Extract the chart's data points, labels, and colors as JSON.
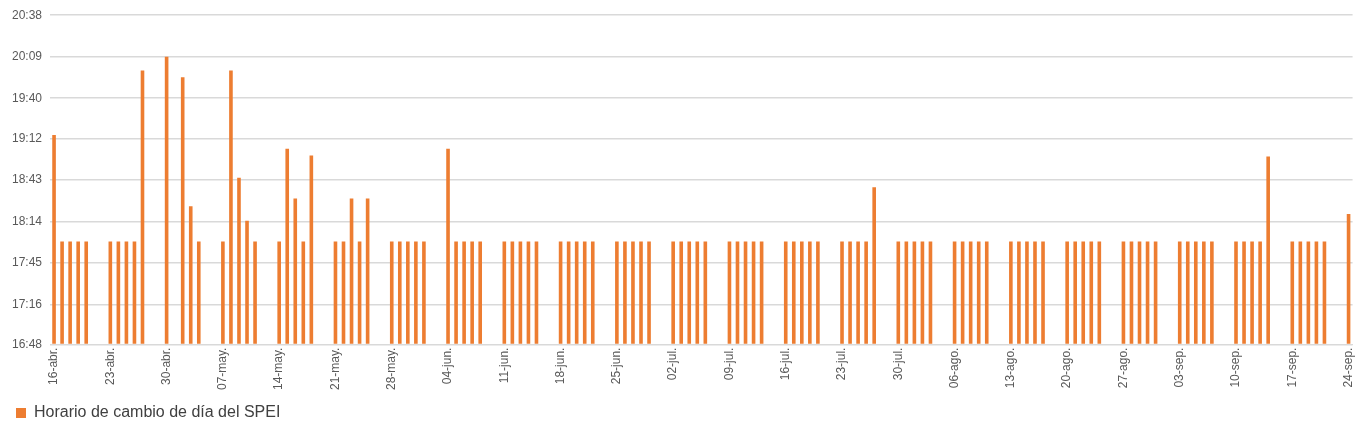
{
  "chart_data": {
    "type": "bar",
    "categories": [
      "16-abr.",
      null,
      null,
      null,
      null,
      null,
      null,
      "23-abr.",
      null,
      null,
      null,
      null,
      null,
      null,
      "30-abr.",
      null,
      null,
      null,
      null,
      null,
      null,
      "07-may.",
      null,
      null,
      null,
      null,
      null,
      null,
      "14-may.",
      null,
      null,
      null,
      null,
      null,
      null,
      "21-may.",
      null,
      null,
      null,
      null,
      null,
      null,
      "28-may.",
      null,
      null,
      null,
      null,
      null,
      null,
      "04-jun.",
      null,
      null,
      null,
      null,
      null,
      null,
      "11-jun.",
      null,
      null,
      null,
      null,
      null,
      null,
      "18-jun.",
      null,
      null,
      null,
      null,
      null,
      null,
      "25-jun.",
      null,
      null,
      null,
      null,
      null,
      null,
      "02-jul.",
      null,
      null,
      null,
      null,
      null,
      null,
      "09-jul.",
      null,
      null,
      null,
      null,
      null,
      null,
      "16-jul.",
      null,
      null,
      null,
      null,
      null,
      null,
      "23-jul.",
      null,
      null,
      null,
      null,
      null,
      null,
      "30-jul.",
      null,
      null,
      null,
      null,
      null,
      null,
      "06-ago.",
      null,
      null,
      null,
      null,
      null,
      null,
      "13-ago.",
      null,
      null,
      null,
      null,
      null,
      null,
      "20-ago.",
      null,
      null,
      null,
      null,
      null,
      null,
      "27-ago.",
      null,
      null,
      null,
      null,
      null,
      null,
      "03-sep.",
      null,
      null,
      null,
      null,
      null,
      null,
      "10-sep.",
      null,
      null,
      null,
      null,
      null,
      null,
      "17-sep.",
      null,
      null,
      null,
      null,
      null,
      null,
      "24-sep."
    ],
    "series": [
      {
        "name": "Horario de cambio de día del SPEI",
        "color": "#ed7d31",
        "values": [
          19.24,
          18,
          18,
          18,
          18,
          null,
          null,
          18,
          18,
          18,
          18,
          19.99,
          null,
          null,
          20.15,
          null,
          19.91,
          18.41,
          18,
          null,
          null,
          18,
          19.99,
          18.74,
          18.24,
          18,
          null,
          null,
          18,
          19.08,
          18.5,
          18,
          19.0,
          null,
          null,
          18,
          18,
          18.5,
          18,
          18.5,
          null,
          null,
          18,
          18,
          18,
          18,
          18,
          null,
          null,
          19.08,
          18,
          18,
          18,
          18,
          null,
          null,
          18,
          18,
          18,
          18,
          18,
          null,
          null,
          18,
          18,
          18,
          18,
          18,
          null,
          null,
          18,
          18,
          18,
          18,
          18,
          null,
          null,
          18,
          18,
          18,
          18,
          18,
          null,
          null,
          18,
          18,
          18,
          18,
          18,
          null,
          null,
          18,
          18,
          18,
          18,
          18,
          null,
          null,
          18,
          18,
          18,
          18,
          18.63,
          null,
          null,
          18,
          18,
          18,
          18,
          18,
          null,
          null,
          18,
          18,
          18,
          18,
          18,
          null,
          null,
          18,
          18,
          18,
          18,
          18,
          null,
          null,
          18,
          18,
          18,
          18,
          18,
          null,
          null,
          18,
          18,
          18,
          18,
          18,
          null,
          null,
          18,
          18,
          18,
          18,
          18,
          null,
          null,
          18,
          18,
          18,
          18,
          18.99,
          null,
          null,
          18,
          18,
          18,
          18,
          18,
          null,
          null,
          18.32
        ]
      }
    ],
    "ylim": [
      16.8,
      20.6333
    ],
    "yticks": [
      {
        "value": 16.8,
        "label": "16:48"
      },
      {
        "value": 17.2667,
        "label": "17:16"
      },
      {
        "value": 17.75,
        "label": "17:45"
      },
      {
        "value": 18.2333,
        "label": "18:14"
      },
      {
        "value": 18.7167,
        "label": "18:43"
      },
      {
        "value": 19.2,
        "label": "19:12"
      },
      {
        "value": 19.6667,
        "label": "19:40"
      },
      {
        "value": 20.15,
        "label": "20:09"
      },
      {
        "value": 20.6333,
        "label": "20:38"
      }
    ],
    "grid": "y",
    "legend": "bottom"
  }
}
